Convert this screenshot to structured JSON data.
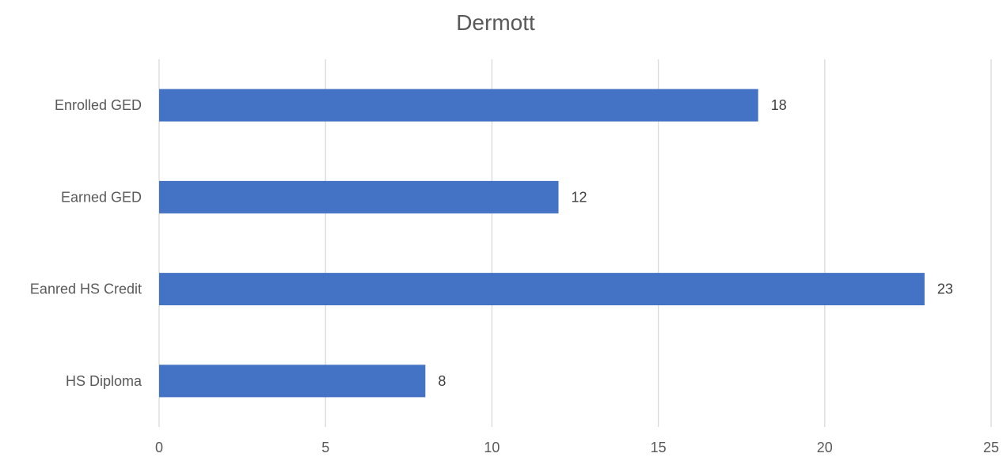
{
  "chart_data": {
    "type": "bar",
    "orientation": "horizontal",
    "title": "Dermott",
    "categories": [
      "Enrolled GED",
      "Earned GED",
      "Eanred HS Credit",
      "HS Diploma"
    ],
    "series": [
      {
        "values": [
          18,
          12,
          23,
          8
        ],
        "color": "#4472C4"
      }
    ],
    "xlim": [
      0,
      25
    ],
    "x_ticks": [
      0,
      5,
      10,
      15,
      20,
      25
    ],
    "xlabel": "",
    "ylabel": "",
    "grid": "vertical",
    "legend": "none",
    "data_labels": true
  }
}
